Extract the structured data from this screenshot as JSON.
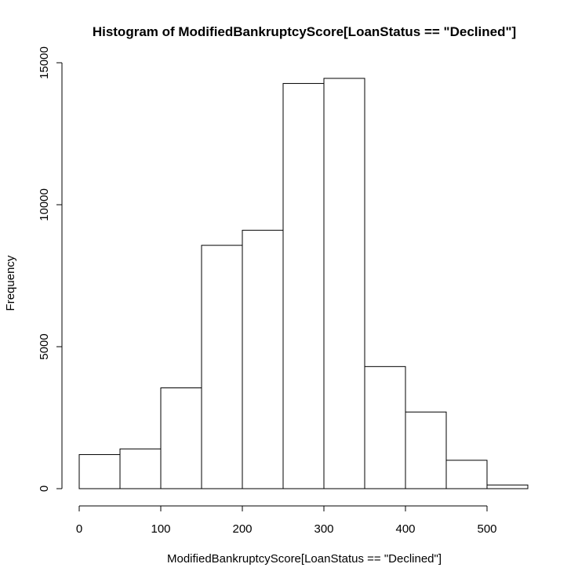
{
  "chart_data": {
    "type": "bar",
    "title": "Histogram of ModifiedBankruptcyScore[LoanStatus == \"Declined\"]",
    "xlabel": "ModifiedBankruptcyScore[LoanStatus == \"Declined\"]",
    "ylabel": "Frequency",
    "bins": [
      {
        "start": 0,
        "end": 50,
        "count": 1200
      },
      {
        "start": 50,
        "end": 100,
        "count": 1400
      },
      {
        "start": 100,
        "end": 150,
        "count": 3550
      },
      {
        "start": 150,
        "end": 200,
        "count": 8570
      },
      {
        "start": 200,
        "end": 250,
        "count": 9100
      },
      {
        "start": 250,
        "end": 300,
        "count": 14270
      },
      {
        "start": 300,
        "end": 350,
        "count": 14450
      },
      {
        "start": 350,
        "end": 400,
        "count": 4300
      },
      {
        "start": 400,
        "end": 450,
        "count": 2700
      },
      {
        "start": 450,
        "end": 500,
        "count": 1000
      },
      {
        "start": 500,
        "end": 550,
        "count": 130
      }
    ],
    "xlim": [
      0,
      550
    ],
    "ylim": [
      0,
      15000
    ],
    "xticks": [
      0,
      100,
      200,
      300,
      400,
      500
    ],
    "yticks": [
      0,
      5000,
      10000,
      15000
    ],
    "grid": false,
    "legend": "none"
  }
}
